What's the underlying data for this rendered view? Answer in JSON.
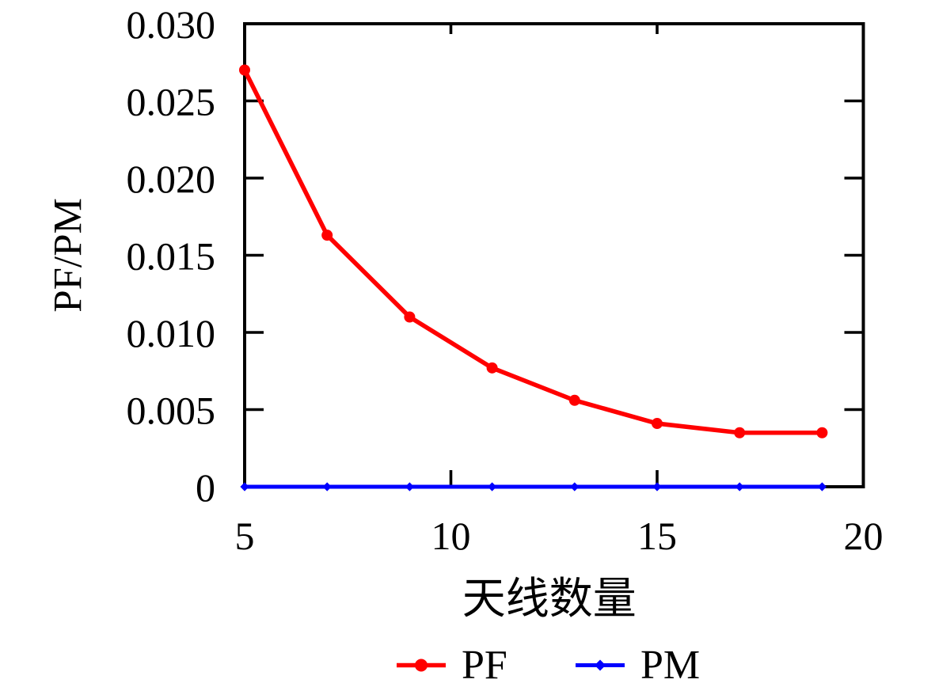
{
  "figure": {
    "background": "#ffffff",
    "text_color": "#000000",
    "axis_color": "#000000"
  },
  "chart_data": {
    "type": "line",
    "title": "",
    "xlabel": "天线数量",
    "ylabel": "PF/PM",
    "xlim": [
      5,
      20
    ],
    "ylim": [
      0,
      0.03
    ],
    "grid": false,
    "legend_position": "bottom-center-below-xlabel",
    "x_ticks": {
      "values": [
        5,
        10,
        15,
        20
      ],
      "labels": [
        "5",
        "10",
        "15",
        "20"
      ]
    },
    "y_ticks": {
      "values": [
        0,
        0.005,
        0.01,
        0.015,
        0.02,
        0.025,
        0.03
      ],
      "labels": [
        "0",
        "0.005",
        "0.010",
        "0.015",
        "0.020",
        "0.025",
        "0.030"
      ]
    },
    "x": [
      5,
      7,
      9,
      11,
      13,
      15,
      17,
      19
    ],
    "series": [
      {
        "name": "PF",
        "color": "#ff0000",
        "marker": "circle",
        "values": [
          0.027,
          0.0163,
          0.011,
          0.0077,
          0.0056,
          0.0041,
          0.0035,
          0.0035
        ]
      },
      {
        "name": "PM",
        "color": "#0000ff",
        "marker": "diamond",
        "values": [
          0,
          0,
          0,
          0,
          0,
          0,
          0,
          0
        ]
      }
    ]
  }
}
